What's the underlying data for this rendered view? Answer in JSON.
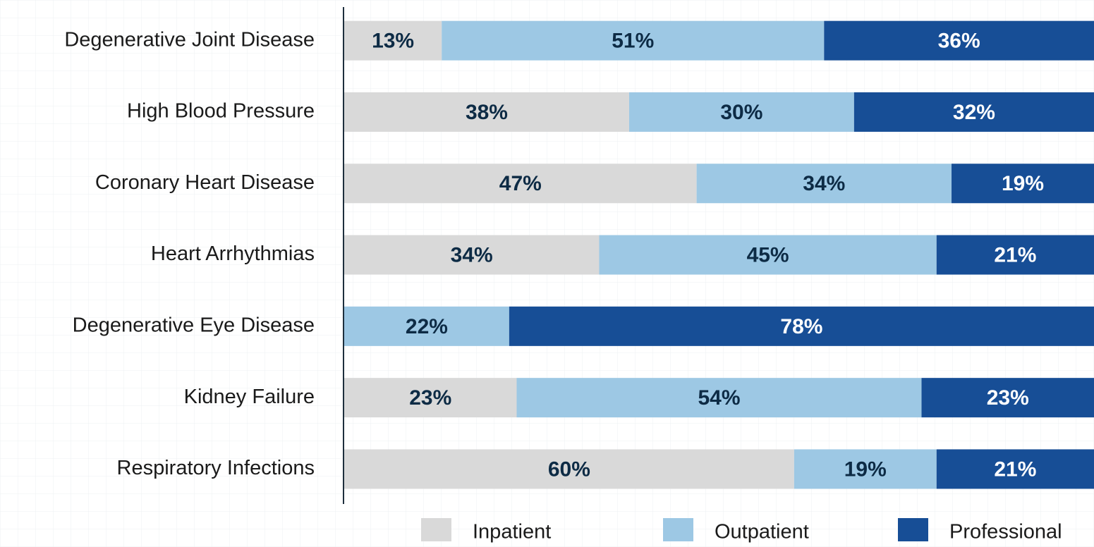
{
  "chart_data": {
    "type": "stacked_barh",
    "categories": [
      "Degenerative Joint Disease",
      "High Blood Pressure",
      "Coronary Heart Disease",
      "Heart Arrhythmias",
      "Degenerative Eye Disease",
      "Kidney Failure",
      "Respiratory Infections"
    ],
    "series": [
      {
        "name": "Inpatient",
        "color": "#d9d9d9",
        "values": [
          13,
          38,
          47,
          34,
          0,
          23,
          60
        ],
        "value_labels": [
          "13%",
          "38%",
          "47%",
          "34%",
          null,
          "23%",
          "60%"
        ]
      },
      {
        "name": "Outpatient",
        "color": "#9dc8e4",
        "values": [
          51,
          30,
          34,
          45,
          22,
          54,
          19
        ],
        "value_labels": [
          "51%",
          "30%",
          "34%",
          "45%",
          "22%",
          "54%",
          "19%"
        ]
      },
      {
        "name": "Professional",
        "color": "#174e96",
        "values": [
          36,
          32,
          19,
          21,
          78,
          23,
          21
        ],
        "value_labels": [
          "36%",
          "32%",
          "19%",
          "21%",
          "78%",
          "23%",
          "21%"
        ]
      }
    ]
  }
}
